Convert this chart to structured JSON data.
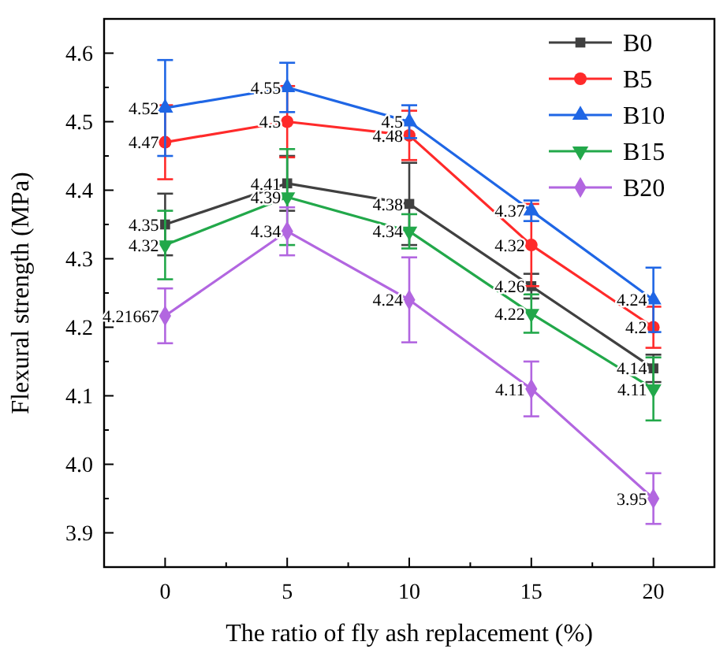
{
  "chart_data": {
    "type": "line",
    "xlabel": "The ratio of fly ash replacement (%)",
    "ylabel": "Flexural strength (MPa)",
    "x": [
      0,
      5,
      10,
      15,
      20
    ],
    "xlim": [
      -2.5,
      22.5
    ],
    "xticks": [
      0,
      5,
      10,
      15,
      20
    ],
    "ylim": [
      3.85,
      4.65
    ],
    "yticks": [
      {
        "value": 3.9,
        "label": "3.9"
      },
      {
        "value": 4.0,
        "label": "4.0"
      },
      {
        "value": 4.1,
        "label": "4.1"
      },
      {
        "value": 4.2,
        "label": "4.2"
      },
      {
        "value": 4.3,
        "label": "4.3"
      },
      {
        "value": 4.4,
        "label": "4.4"
      },
      {
        "value": 4.5,
        "label": "4.5"
      },
      {
        "value": 4.6,
        "label": "4.6"
      }
    ],
    "grid": false,
    "legend": "top right",
    "data_labels": true,
    "line_style": "solid",
    "series": [
      {
        "name": "B0",
        "color": "#404040",
        "marker": "square",
        "values": [
          4.35,
          4.41,
          4.38,
          4.26,
          4.14
        ],
        "errors": [
          0.045,
          0.04,
          0.06,
          0.018,
          0.02
        ]
      },
      {
        "name": "B5",
        "color": "#ff2a2a",
        "marker": "circle",
        "values": [
          4.47,
          4.5,
          4.48,
          4.32,
          4.2
        ],
        "errors": [
          0.054,
          0.052,
          0.036,
          0.06,
          0.03
        ]
      },
      {
        "name": "B10",
        "color": "#1f66e5",
        "marker": "triangle",
        "values": [
          4.52,
          4.55,
          4.5,
          4.37,
          4.24
        ],
        "errors": [
          0.07,
          0.036,
          0.024,
          0.015,
          0.047
        ]
      },
      {
        "name": "B15",
        "color": "#22a84a",
        "marker": "triangle-down",
        "values": [
          4.32,
          4.39,
          4.34,
          4.22,
          4.11
        ],
        "errors": [
          0.05,
          0.07,
          0.025,
          0.028,
          0.046
        ]
      },
      {
        "name": "B20",
        "color": "#b266e0",
        "marker": "diamond",
        "values": [
          4.21667,
          4.34,
          4.24,
          4.11,
          3.95
        ],
        "errors": [
          0.04,
          0.035,
          0.062,
          0.04,
          0.037
        ]
      }
    ]
  }
}
